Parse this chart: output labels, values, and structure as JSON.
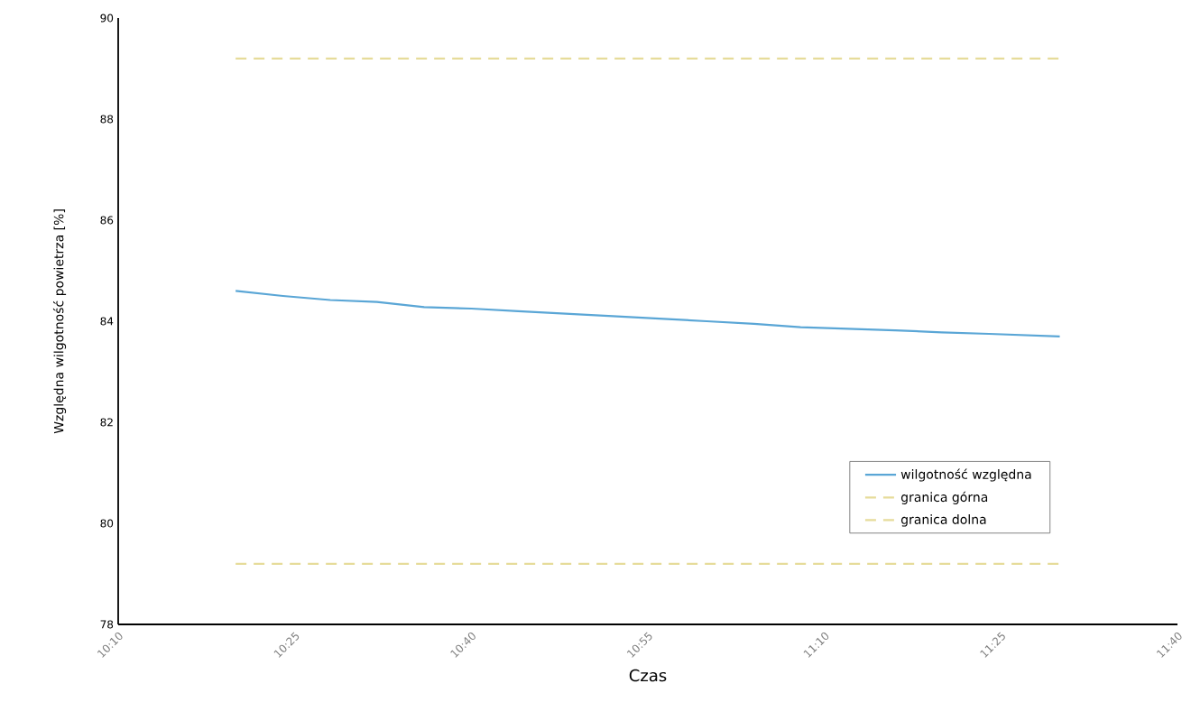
{
  "chart_data": {
    "type": "line",
    "xlabel": "Czas",
    "ylabel": "Względna wilgotność powietrza [%]",
    "xlim": [
      10.1667,
      11.6667
    ],
    "ylim": [
      78,
      90
    ],
    "xticks": [
      {
        "value": 10.1667,
        "label": "10:10"
      },
      {
        "value": 10.4167,
        "label": "10:25"
      },
      {
        "value": 10.6667,
        "label": "10:40"
      },
      {
        "value": 10.9167,
        "label": "10:55"
      },
      {
        "value": 11.1667,
        "label": "11:10"
      },
      {
        "value": 11.4167,
        "label": "11:25"
      },
      {
        "value": 11.6667,
        "label": "11:40"
      }
    ],
    "yticks": [
      78,
      80,
      82,
      84,
      86,
      88,
      90
    ],
    "legend": "bottom right",
    "grid": false,
    "series": [
      {
        "name": "wilgotność względna",
        "color": "#5aa6d6",
        "line_style": "solid",
        "x": [
          10.333,
          10.4,
          10.467,
          10.533,
          10.6,
          10.667,
          10.733,
          10.8,
          10.867,
          10.933,
          11.0,
          11.067,
          11.133,
          11.2,
          11.267,
          11.333,
          11.4,
          11.5
        ],
        "values": [
          84.6,
          84.5,
          84.42,
          84.38,
          84.28,
          84.25,
          84.2,
          84.15,
          84.1,
          84.05,
          84.0,
          83.95,
          83.88,
          83.85,
          83.82,
          83.78,
          83.75,
          83.7
        ]
      },
      {
        "name": "granica górna",
        "color": "#e6dc9a",
        "line_style": "dashed",
        "x": [
          10.333,
          11.5
        ],
        "values": [
          89.2,
          89.2
        ]
      },
      {
        "name": "granica dolna",
        "color": "#e6dc9a",
        "line_style": "dashed",
        "x": [
          10.333,
          11.5
        ],
        "values": [
          79.2,
          79.2
        ]
      }
    ]
  }
}
